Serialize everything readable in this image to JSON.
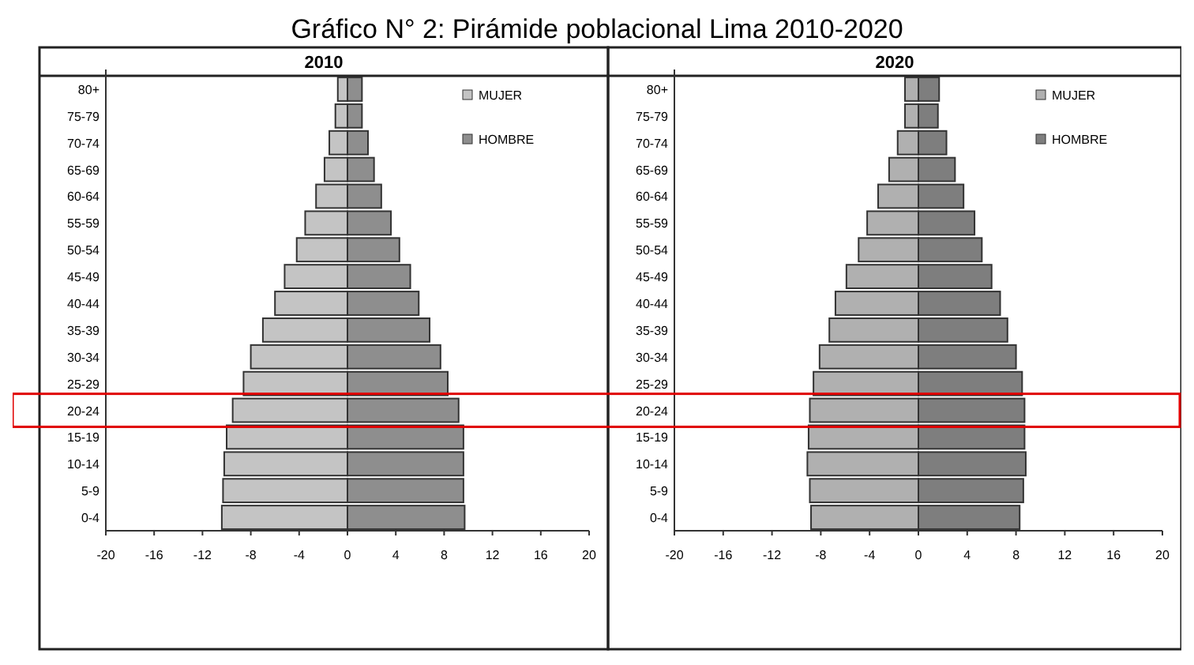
{
  "chart_data": [
    {
      "type": "bar",
      "title": "2010",
      "orientation": "horizontal",
      "stacked": true,
      "annotations": [
        "Gráfico N° 2: Pirámide poblacional Lima 2010-2020"
      ],
      "categories": [
        "80+",
        "75-79",
        "70-74",
        "65-69",
        "60-64",
        "55-59",
        "50-54",
        "45-49",
        "40-44",
        "35-39",
        "30-34",
        "25-29",
        "20-24",
        "15-19",
        "10-14",
        "5-9",
        "0-4"
      ],
      "series": [
        {
          "name": "MUJER",
          "color": "#c4c4c4",
          "values": [
            -0.8,
            -1.0,
            -1.5,
            -1.9,
            -2.6,
            -3.5,
            -4.2,
            -5.2,
            -6.0,
            -7.0,
            -8.0,
            -8.6,
            -9.5,
            -10.0,
            -10.2,
            -10.3,
            -10.4
          ]
        },
        {
          "name": "HOMBRE",
          "color": "#8e8e8e",
          "values": [
            1.2,
            1.2,
            1.7,
            2.2,
            2.8,
            3.6,
            4.3,
            5.2,
            5.9,
            6.8,
            7.7,
            8.3,
            9.2,
            9.6,
            9.6,
            9.6,
            9.7
          ]
        }
      ],
      "xlim": [
        -20,
        20
      ],
      "xticks": [
        -20,
        -16,
        -12,
        -8,
        -4,
        0,
        4,
        8,
        12,
        16,
        20
      ],
      "legend": "top right",
      "grid": false
    },
    {
      "type": "bar",
      "title": "2020",
      "orientation": "horizontal",
      "stacked": true,
      "categories": [
        "80+",
        "75-79",
        "70-74",
        "65-69",
        "60-64",
        "55-59",
        "50-54",
        "45-49",
        "40-44",
        "35-39",
        "30-34",
        "25-29",
        "20-24",
        "15-19",
        "10-14",
        "5-9",
        "0-4"
      ],
      "series": [
        {
          "name": "MUJER",
          "color": "#b0b0b0",
          "values": [
            -1.1,
            -1.1,
            -1.7,
            -2.4,
            -3.3,
            -4.2,
            -4.9,
            -5.9,
            -6.8,
            -7.3,
            -8.1,
            -8.6,
            -8.9,
            -9.0,
            -9.1,
            -8.9,
            -8.8
          ]
        },
        {
          "name": "HOMBRE",
          "color": "#7e7e7e",
          "values": [
            1.7,
            1.6,
            2.3,
            3.0,
            3.7,
            4.6,
            5.2,
            6.0,
            6.7,
            7.3,
            8.0,
            8.5,
            8.7,
            8.7,
            8.8,
            8.6,
            8.3
          ]
        }
      ],
      "xlim": [
        -20,
        20
      ],
      "xticks": [
        -20,
        -16,
        -12,
        -8,
        -4,
        0,
        4,
        8,
        12,
        16,
        20
      ],
      "legend": "top right",
      "grid": false
    }
  ]
}
